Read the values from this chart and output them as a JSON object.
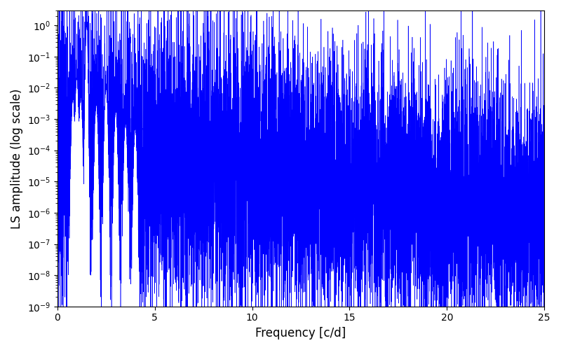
{
  "title": "",
  "xlabel": "Frequency [c/d]",
  "ylabel": "LS amplitude (log scale)",
  "line_color": "#0000ff",
  "xlim": [
    0,
    25
  ],
  "ylim": [
    1e-09,
    3.0
  ],
  "yscale": "log",
  "freq_min": 0.0,
  "freq_max": 25.0,
  "n_points": 10000,
  "peak_freq": 1.5,
  "peak_amp": 1.0,
  "noise_floor_log": -4.0,
  "noise_std_low": 2.5,
  "noise_std_high": 1.8,
  "decay_rate": 0.08,
  "background_color": "#ffffff",
  "figsize": [
    8.0,
    5.0
  ],
  "dpi": 100
}
